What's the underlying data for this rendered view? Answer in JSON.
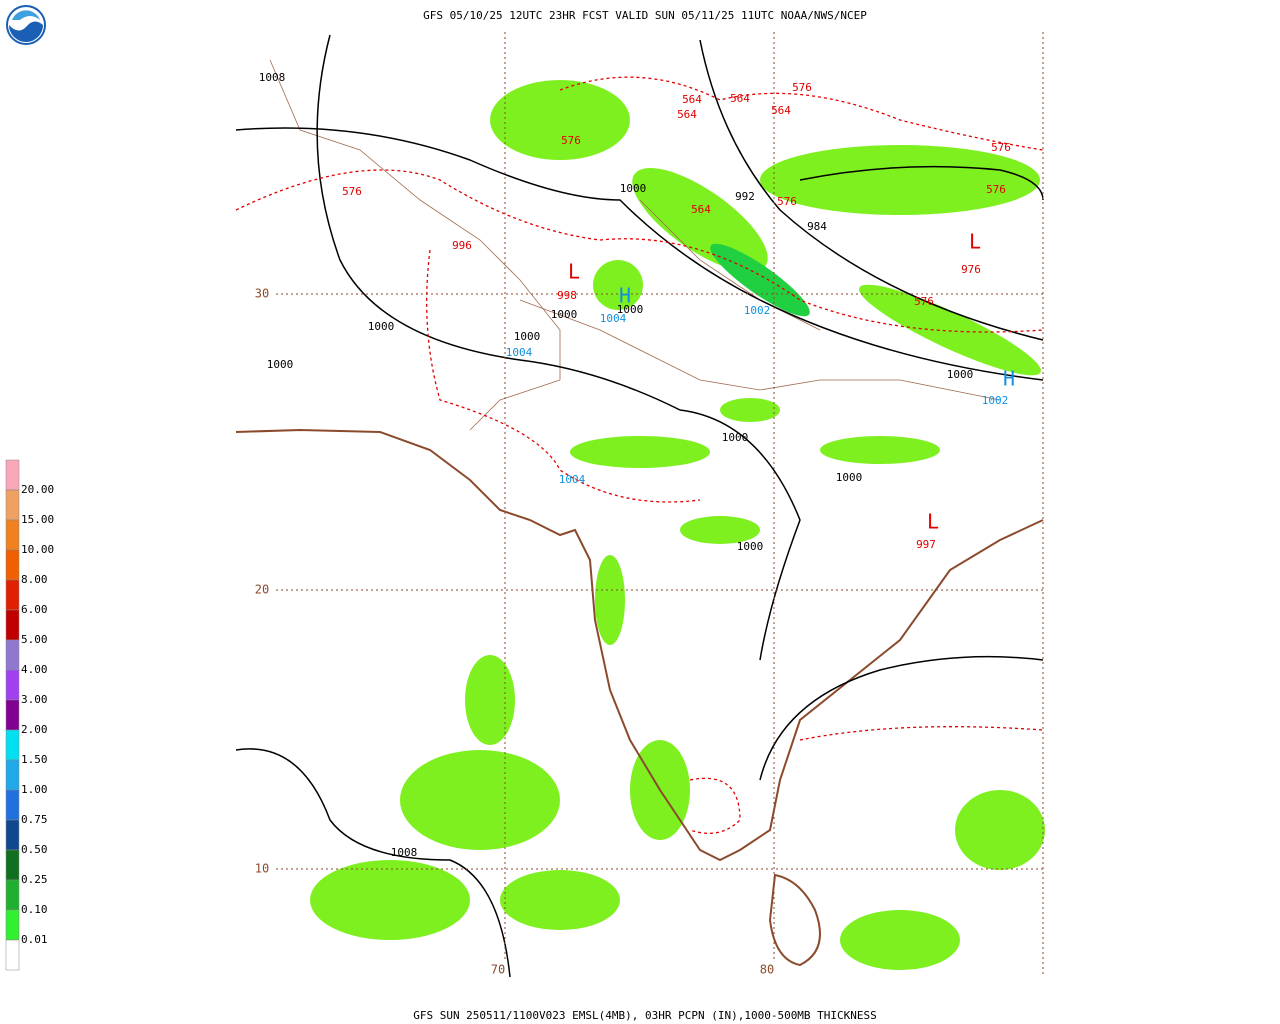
{
  "header": {
    "title": "GFS 05/10/25 12UTC 23HR FCST VALID SUN 05/11/25 11UTC NOAA/NWS/NCEP"
  },
  "footer": {
    "caption": "GFS SUN 250511/1100V023 EMSL(4MB), 03HR PCPN (IN),1000-500MB THICKNESS"
  },
  "legend": {
    "labels": [
      "20.00",
      "15.00",
      "10.00",
      "8.00",
      "6.00",
      "5.00",
      "4.00",
      "3.00",
      "2.00",
      "1.50",
      "1.00",
      "0.75",
      "0.50",
      "0.25",
      "0.10",
      "0.01"
    ],
    "colors": [
      "#f8a8b8",
      "#f0a060",
      "#f08020",
      "#f06000",
      "#e02000",
      "#c00000",
      "#9078d0",
      "#a040f0",
      "#800090",
      "#00e0f0",
      "#20a8e8",
      "#2070e0",
      "#104890",
      "#107020",
      "#20b030",
      "#30f030",
      "#ffffff"
    ]
  },
  "map": {
    "latitude_labels": [
      "30",
      "20",
      "10"
    ],
    "longitude_labels": [
      "70",
      "80"
    ],
    "isobar_labels": [
      "1008",
      "1000",
      "992",
      "984",
      "1000",
      "1000",
      "1000",
      "1000",
      "1000",
      "1000",
      "1000",
      "1000",
      "1000",
      "1008"
    ],
    "thickness_labels": [
      "576",
      "576",
      "564",
      "564",
      "564",
      "564",
      "576",
      "564",
      "576",
      "576",
      "576",
      "576",
      "976",
      "996",
      "998",
      "997"
    ],
    "low_markers": [
      "L",
      "L",
      "L"
    ],
    "high_labels": [
      "1004",
      "1004",
      "1004",
      "1002",
      "1002"
    ],
    "high_markers": [
      "H",
      "H"
    ]
  }
}
